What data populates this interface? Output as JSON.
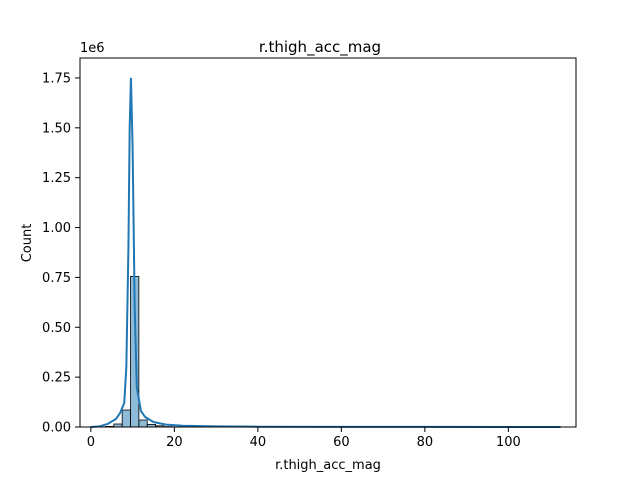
{
  "chart_data": {
    "type": "bar",
    "title": "r.thigh_acc_mag",
    "xlabel": "r.thigh_acc_mag",
    "ylabel": "Count",
    "y_offset_text": "1e6",
    "xlim": [
      -2.6,
      116.2
    ],
    "ylim": [
      0,
      1.85
    ],
    "x_ticks": [
      0,
      20,
      40,
      60,
      80,
      100
    ],
    "x_tick_labels": [
      "0",
      "20",
      "40",
      "60",
      "80",
      "100"
    ],
    "y_ticks": [
      0,
      0.25,
      0.5,
      0.75,
      1.0,
      1.25,
      1.5,
      1.75
    ],
    "y_tick_labels": [
      "0.00",
      "0.25",
      "0.50",
      "0.75",
      "1.00",
      "1.25",
      "1.50",
      "1.75"
    ],
    "grid": false,
    "bar_color": "#1f77b4",
    "bar_alpha": 0.5,
    "bar_edge_color": "#000000",
    "line_color": "#1f77b4",
    "bins": {
      "edges": [
        3.5,
        5.5,
        7.5,
        9.5,
        11.5,
        13.5,
        15.5,
        17.5,
        19.5
      ],
      "values": [
        0.003,
        0.015,
        0.085,
        0.755,
        0.035,
        0.013,
        0.006,
        0.002
      ]
    },
    "kde": {
      "x": [
        0,
        2,
        4,
        6,
        7,
        8,
        8.5,
        9,
        9.3,
        9.6,
        10,
        10.5,
        11,
        12,
        13,
        15,
        18,
        22,
        30,
        40,
        60,
        80,
        100,
        112.5
      ],
      "y": [
        0.0,
        0.003,
        0.015,
        0.04,
        0.07,
        0.12,
        0.3,
        0.9,
        1.5,
        1.75,
        1.4,
        0.6,
        0.2,
        0.08,
        0.05,
        0.025,
        0.012,
        0.006,
        0.003,
        0.0015,
        0.0008,
        0.0005,
        0.0003,
        0.0002
      ]
    }
  }
}
